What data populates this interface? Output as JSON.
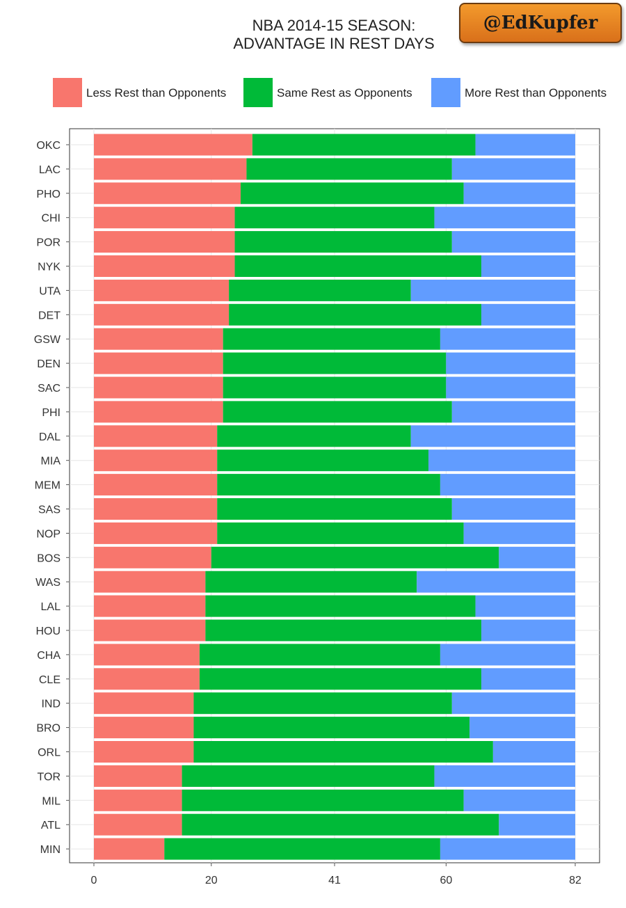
{
  "title": {
    "line1": "NBA 2014-15 SEASON:",
    "line2": "ADVANTAGE IN REST DAYS"
  },
  "badge": {
    "text": "@EdKupfer"
  },
  "colors": {
    "less": "#f8766d",
    "same": "#00ba38",
    "more": "#619cff",
    "grid": "#e6e6e6",
    "axis": "#555555"
  },
  "legend": {
    "placement": "top",
    "items": [
      {
        "key": "less",
        "label": "Less Rest than Opponents"
      },
      {
        "key": "same",
        "label": "Same Rest as Opponents"
      },
      {
        "key": "more",
        "label": "More Rest than Opponents"
      }
    ]
  },
  "chart_data": {
    "type": "bar",
    "orientation": "horizontal",
    "stacked": true,
    "xlim": [
      0,
      82
    ],
    "xticks": [
      0,
      20,
      41,
      60,
      82
    ],
    "grid": true,
    "categories": [
      "OKC",
      "LAC",
      "PHO",
      "CHI",
      "POR",
      "NYK",
      "UTA",
      "DET",
      "GSW",
      "DEN",
      "SAC",
      "PHI",
      "DAL",
      "MIA",
      "MEM",
      "SAS",
      "NOP",
      "BOS",
      "WAS",
      "LAL",
      "HOU",
      "CHA",
      "CLE",
      "IND",
      "BRO",
      "ORL",
      "TOR",
      "MIL",
      "ATL",
      "MIN"
    ],
    "series": [
      {
        "name": "Less Rest than Opponents",
        "key": "less",
        "values": [
          27,
          26,
          25,
          24,
          24,
          24,
          23,
          23,
          22,
          22,
          22,
          22,
          21,
          21,
          21,
          21,
          21,
          20,
          19,
          19,
          19,
          18,
          18,
          17,
          17,
          17,
          15,
          15,
          15,
          12
        ]
      },
      {
        "name": "Same Rest as Opponents",
        "key": "same",
        "values": [
          38,
          35,
          38,
          34,
          37,
          42,
          31,
          43,
          37,
          38,
          38,
          39,
          33,
          36,
          38,
          40,
          42,
          49,
          36,
          46,
          47,
          41,
          48,
          44,
          47,
          51,
          43,
          48,
          54,
          47
        ]
      },
      {
        "name": "More Rest than Opponents",
        "key": "more",
        "values": [
          17,
          21,
          19,
          24,
          21,
          16,
          28,
          16,
          23,
          22,
          22,
          21,
          28,
          25,
          23,
          21,
          19,
          13,
          27,
          17,
          16,
          23,
          16,
          21,
          18,
          14,
          24,
          19,
          13,
          23
        ]
      }
    ]
  }
}
